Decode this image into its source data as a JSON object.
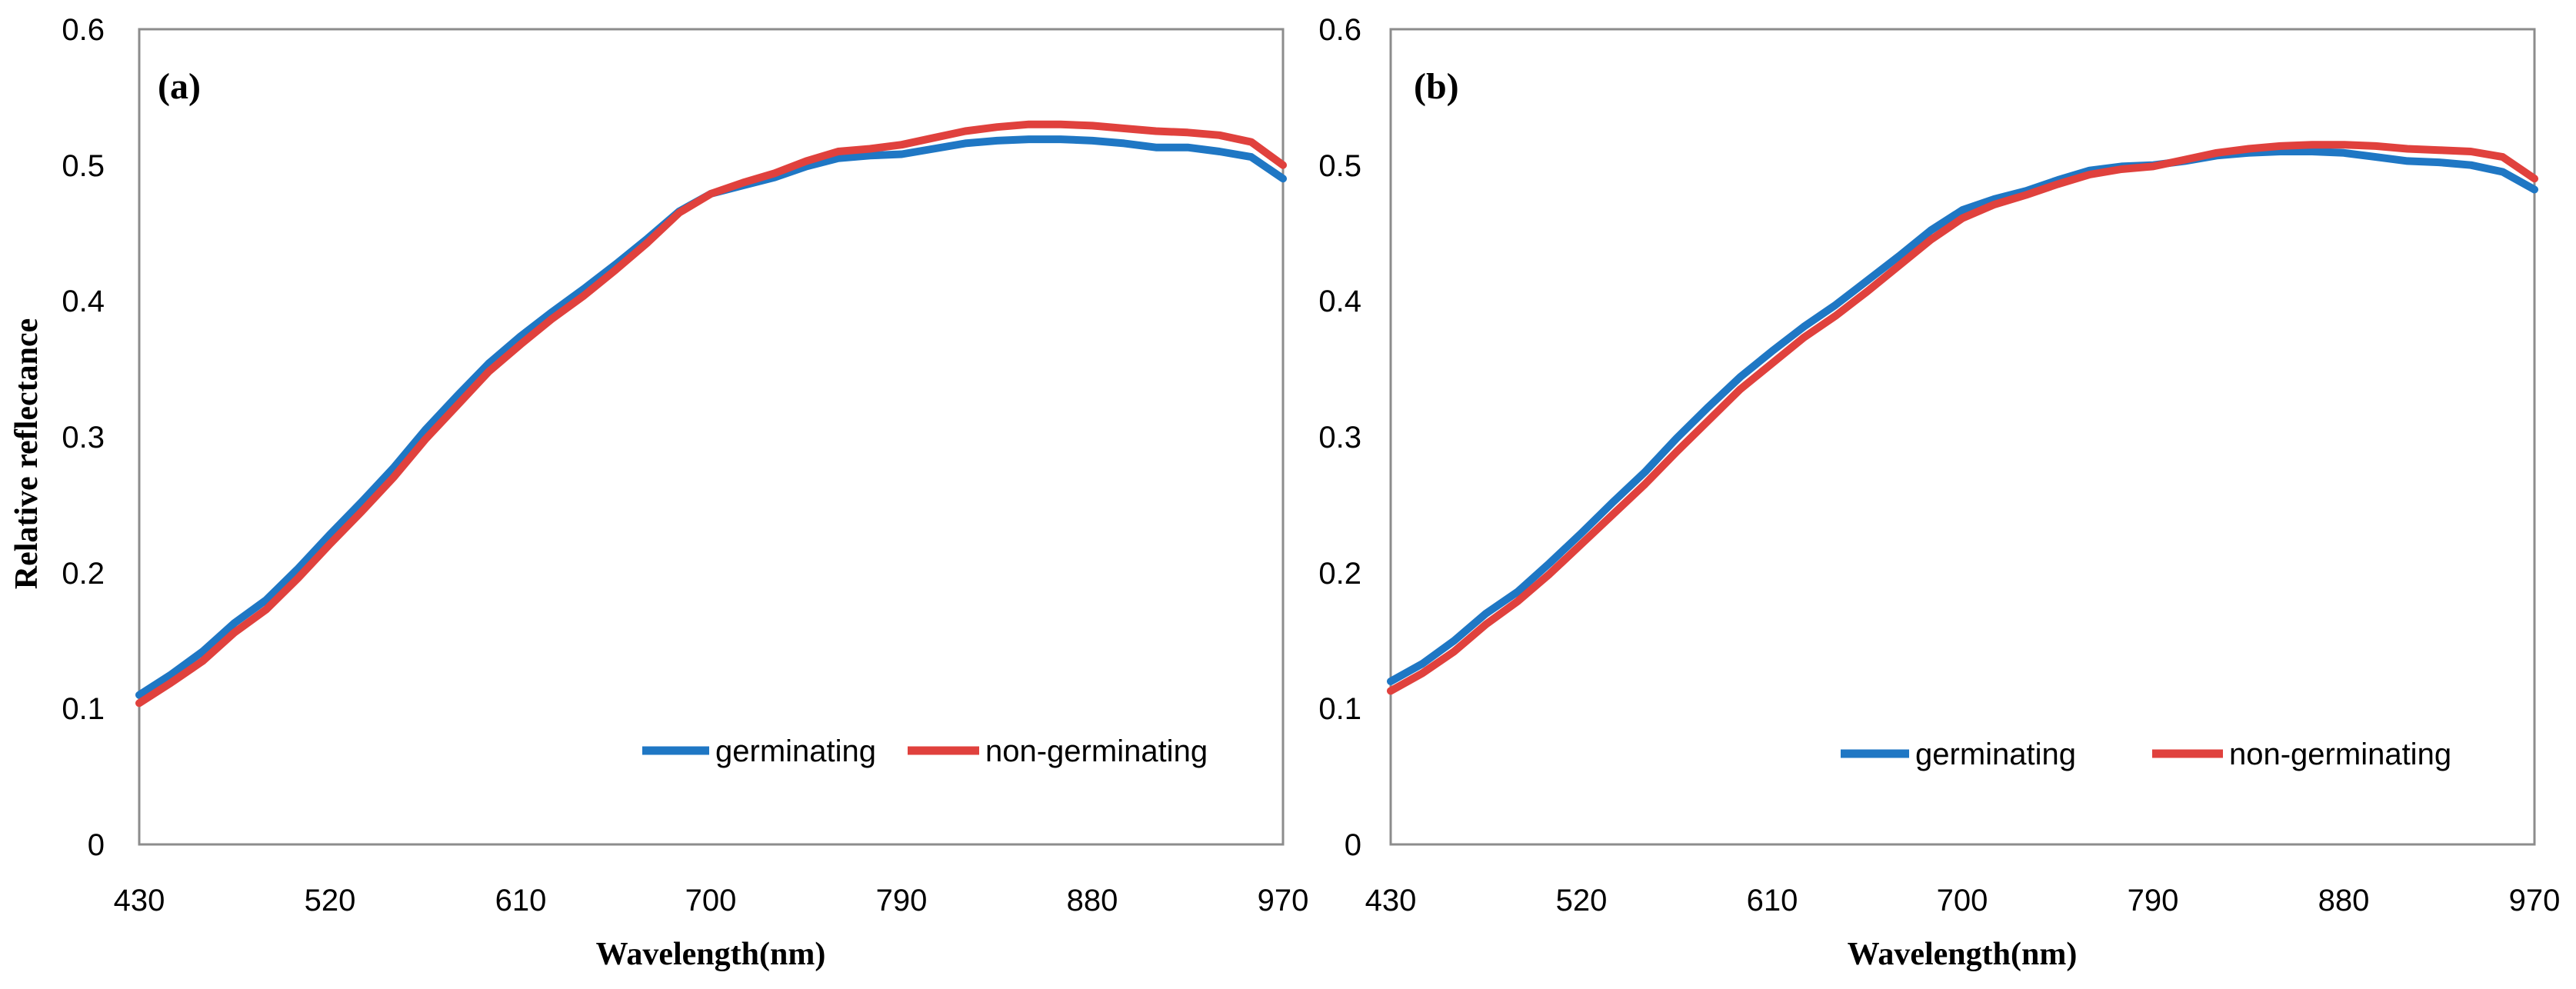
{
  "chart_data": [
    {
      "type": "line",
      "panel_label": "(a)",
      "xlabel": "Wavelength(nm)",
      "ylabel": "Relative reflectance",
      "xlim": [
        430,
        970
      ],
      "ylim": [
        0,
        0.6
      ],
      "xticks": [
        "430",
        "520",
        "610",
        "700",
        "790",
        "880",
        "970"
      ],
      "yticks": [
        "0",
        "0.1",
        "0.2",
        "0.3",
        "0.4",
        "0.5",
        "0.6"
      ],
      "grid": false,
      "legend_position": "bottom-right",
      "x": [
        430,
        445,
        460,
        475,
        490,
        505,
        520,
        535,
        550,
        565,
        580,
        595,
        610,
        625,
        640,
        655,
        670,
        685,
        700,
        715,
        730,
        745,
        760,
        775,
        790,
        805,
        820,
        835,
        850,
        865,
        880,
        895,
        910,
        925,
        940,
        955,
        970
      ],
      "series": [
        {
          "name": "germinating",
          "color": "#1f77c4",
          "values": [
            0.11,
            0.125,
            0.142,
            0.163,
            0.18,
            0.203,
            0.228,
            0.252,
            0.277,
            0.305,
            0.33,
            0.354,
            0.374,
            0.392,
            0.409,
            0.427,
            0.446,
            0.466,
            0.479,
            0.485,
            0.491,
            0.499,
            0.505,
            0.507,
            0.508,
            0.512,
            0.516,
            0.518,
            0.519,
            0.519,
            0.518,
            0.516,
            0.513,
            0.513,
            0.51,
            0.506,
            0.49
          ]
        },
        {
          "name": "non-germinating",
          "color": "#e0413d",
          "values": [
            0.104,
            0.119,
            0.135,
            0.156,
            0.173,
            0.196,
            0.221,
            0.245,
            0.27,
            0.298,
            0.323,
            0.348,
            0.368,
            0.387,
            0.404,
            0.423,
            0.443,
            0.465,
            0.479,
            0.487,
            0.494,
            0.503,
            0.51,
            0.512,
            0.515,
            0.52,
            0.525,
            0.528,
            0.53,
            0.53,
            0.529,
            0.527,
            0.525,
            0.524,
            0.522,
            0.517,
            0.5
          ]
        }
      ]
    },
    {
      "type": "line",
      "panel_label": "(b)",
      "xlabel": "Wavelength(nm)",
      "ylabel": "",
      "xlim": [
        430,
        970
      ],
      "ylim": [
        0,
        0.6
      ],
      "xticks": [
        "430",
        "520",
        "610",
        "700",
        "790",
        "880",
        "970"
      ],
      "yticks": [
        "0",
        "0.1",
        "0.2",
        "0.3",
        "0.4",
        "0.5",
        "0.6"
      ],
      "grid": false,
      "legend_position": "bottom-right",
      "x": [
        430,
        445,
        460,
        475,
        490,
        505,
        520,
        535,
        550,
        565,
        580,
        595,
        610,
        625,
        640,
        655,
        670,
        685,
        700,
        715,
        730,
        745,
        760,
        775,
        790,
        805,
        820,
        835,
        850,
        865,
        880,
        895,
        910,
        925,
        940,
        955,
        970
      ],
      "series": [
        {
          "name": "germinating",
          "color": "#1f77c4",
          "values": [
            0.12,
            0.133,
            0.15,
            0.17,
            0.186,
            0.207,
            0.229,
            0.252,
            0.274,
            0.299,
            0.322,
            0.344,
            0.363,
            0.381,
            0.397,
            0.415,
            0.433,
            0.452,
            0.467,
            0.475,
            0.481,
            0.489,
            0.496,
            0.499,
            0.5,
            0.503,
            0.507,
            0.509,
            0.51,
            0.51,
            0.509,
            0.506,
            0.503,
            0.502,
            0.5,
            0.495,
            0.482
          ]
        },
        {
          "name": "non-germinating",
          "color": "#e0413d",
          "values": [
            0.113,
            0.126,
            0.142,
            0.162,
            0.179,
            0.199,
            0.221,
            0.243,
            0.265,
            0.289,
            0.312,
            0.335,
            0.354,
            0.373,
            0.389,
            0.407,
            0.426,
            0.445,
            0.461,
            0.471,
            0.478,
            0.486,
            0.493,
            0.497,
            0.499,
            0.504,
            0.509,
            0.512,
            0.514,
            0.515,
            0.515,
            0.514,
            0.512,
            0.511,
            0.51,
            0.506,
            0.49
          ]
        }
      ]
    }
  ]
}
